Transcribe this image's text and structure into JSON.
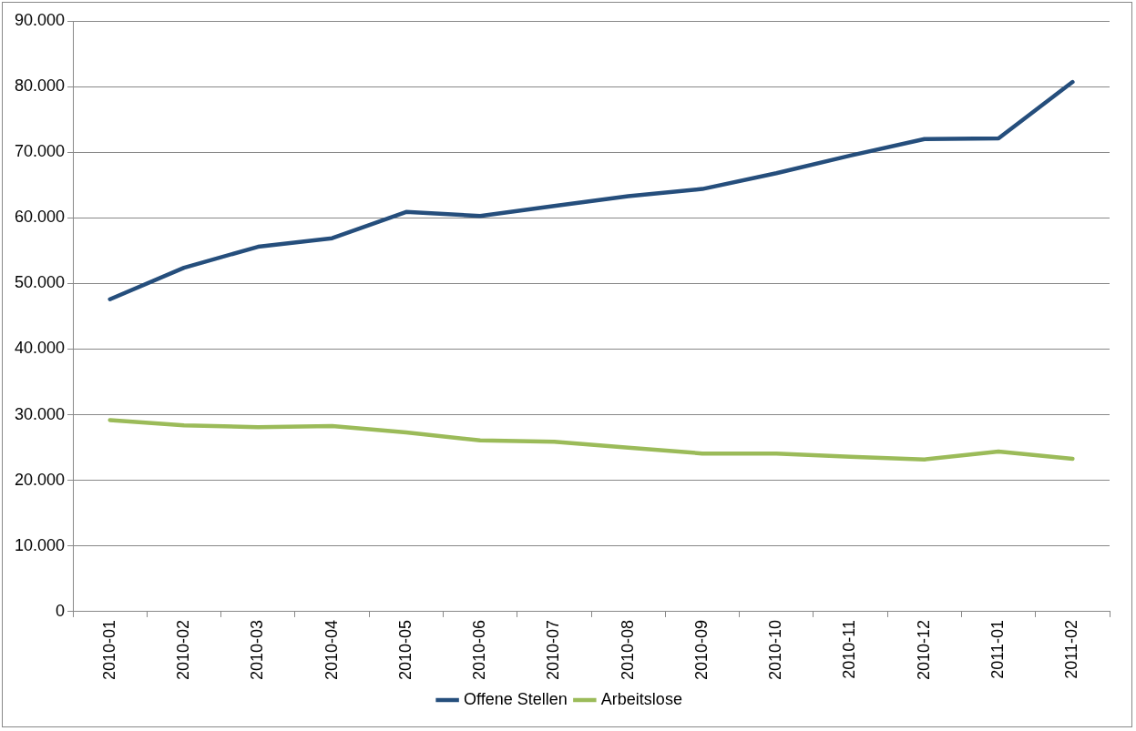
{
  "chart_data": {
    "type": "line",
    "categories": [
      "2010-01",
      "2010-02",
      "2010-03",
      "2010-04",
      "2010-05",
      "2010-06",
      "2010-07",
      "2010-08",
      "2010-09",
      "2010-10",
      "2010-11",
      "2010-12",
      "2011-01",
      "2011-02"
    ],
    "series": [
      {
        "name": "Offene Stellen",
        "color": "#254e7c",
        "values": [
          47600,
          52400,
          55600,
          56900,
          60900,
          60300,
          61800,
          63300,
          64400,
          66800,
          69500,
          72000,
          72100,
          80700
        ]
      },
      {
        "name": "Arbeitslose",
        "color": "#9bbb59",
        "values": [
          29200,
          28400,
          28100,
          28300,
          27300,
          26100,
          25900,
          25000,
          24100,
          24100,
          23600,
          23200,
          24400,
          23300
        ]
      }
    ],
    "ylim": [
      0,
      90000
    ],
    "yticks": [
      0,
      {
        "value": 10000,
        "label": "10.000"
      },
      {
        "value": 20000,
        "label": "20.000"
      },
      {
        "value": 30000,
        "label": "30.000"
      },
      {
        "value": 40000,
        "label": "40.000"
      },
      {
        "value": 50000,
        "label": "50.000"
      },
      {
        "value": 60000,
        "label": "60.000"
      },
      {
        "value": 70000,
        "label": "70.000"
      },
      {
        "value": 80000,
        "label": "80.000"
      },
      {
        "value": 90000,
        "label": "90.000"
      }
    ],
    "grid": "y",
    "legend": "bottom",
    "marker": "none"
  }
}
